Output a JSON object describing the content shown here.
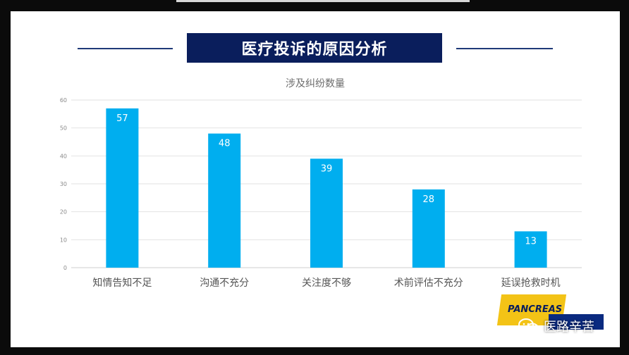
{
  "slide": {
    "title": "医疗投诉的原因分析"
  },
  "badge": {
    "text": "PANCREAS"
  },
  "watermark": {
    "text": "医路辛苦",
    "icon": "wechat-icon"
  },
  "colors": {
    "bar": "#00aeef",
    "banner": "#0a1e5c",
    "grid": "#e2e2e2"
  },
  "chart_data": {
    "type": "bar",
    "title": "涉及纠纷数量",
    "categories": [
      "知情告知不足",
      "沟通不充分",
      "关注度不够",
      "术前评估不充分",
      "延误抢救时机"
    ],
    "values": [
      57,
      48,
      39,
      28,
      13
    ],
    "ylim": [
      0,
      60
    ],
    "yticks": [
      0,
      10,
      20,
      30,
      40,
      50,
      60
    ],
    "grid": true,
    "data_labels": true
  }
}
